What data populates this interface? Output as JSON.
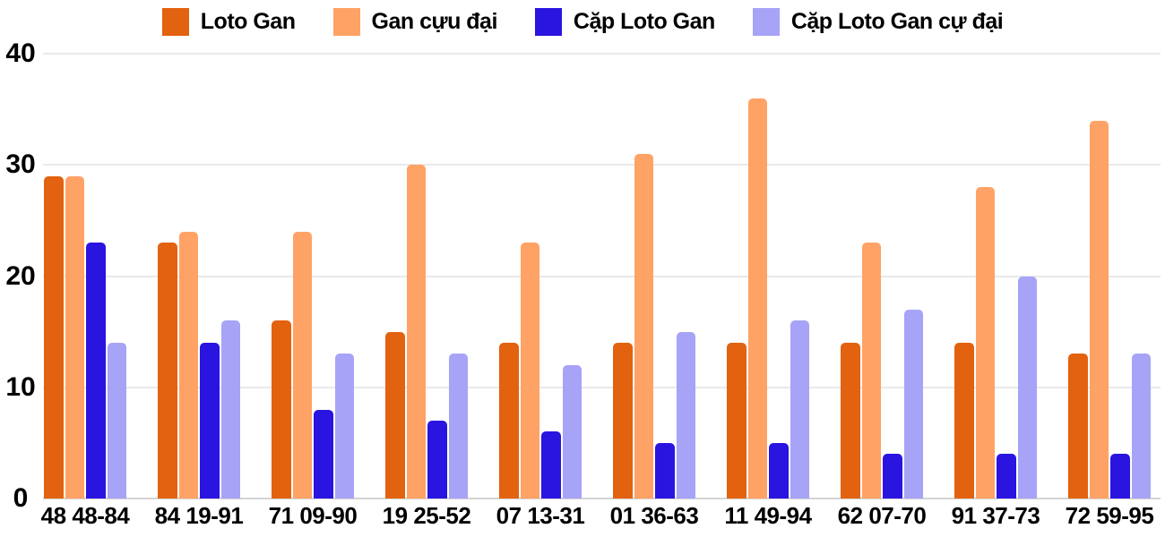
{
  "chart_data": {
    "type": "bar",
    "title": "",
    "xlabel": "",
    "ylabel": "",
    "categories": [
      "48 48-84",
      "84 19-91",
      "71 09-90",
      "19 25-52",
      "07 13-31",
      "01 36-63",
      "11 49-94",
      "62 07-70",
      "91 37-73",
      "72 59-95"
    ],
    "series": [
      {
        "name": "Loto Gan",
        "color": "#e2620f",
        "values": [
          29,
          23,
          16,
          15,
          14,
          14,
          14,
          14,
          14,
          13
        ]
      },
      {
        "name": "Gan cựu đại",
        "color": "#ffa266",
        "values": [
          29,
          24,
          24,
          30,
          23,
          31,
          36,
          23,
          28,
          34
        ]
      },
      {
        "name": "Cặp Loto Gan",
        "color": "#2a14e0",
        "values": [
          23,
          14,
          8,
          7,
          6,
          5,
          5,
          4,
          4,
          4
        ]
      },
      {
        "name": "Cặp Loto Gan cự đại",
        "color": "#a7a3f7",
        "values": [
          14,
          16,
          13,
          13,
          12,
          15,
          16,
          17,
          20,
          13
        ]
      }
    ],
    "y_axis": {
      "ticks": [
        0,
        10,
        20,
        30,
        40
      ],
      "min": 0,
      "max": 40
    },
    "grid": true,
    "legend_position": "top",
    "colors": {
      "background": "#ffffff",
      "grid_line": "#e9e9e9",
      "axis_line": "#d4d4d4",
      "text": "#000000"
    }
  }
}
